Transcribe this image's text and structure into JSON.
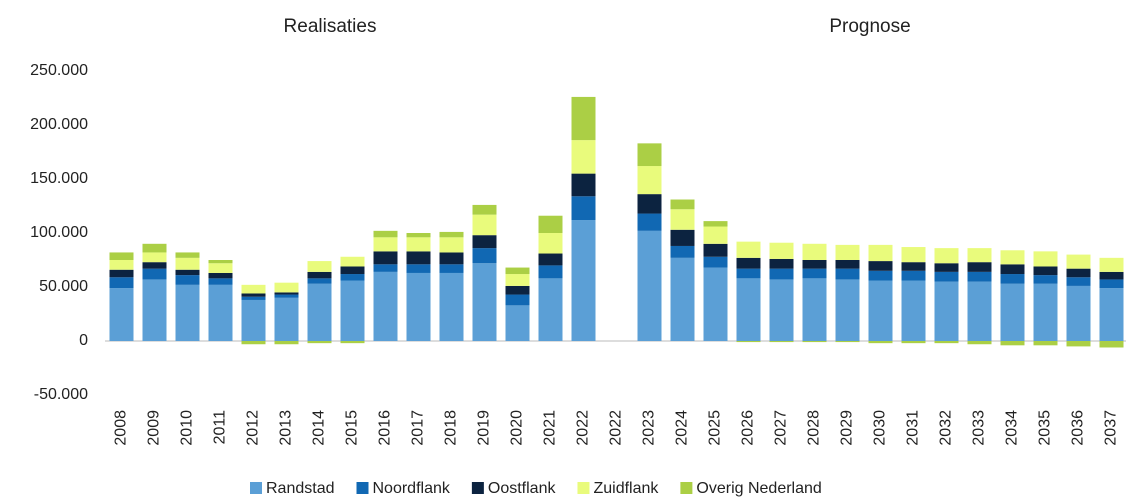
{
  "chart_data": {
    "type": "bar",
    "stacked": true,
    "annotations": [
      "Realisaties",
      "Prognose"
    ],
    "categories": [
      "2008",
      "2009",
      "2010",
      "2011",
      "2012",
      "2013",
      "2014",
      "2015",
      "2016",
      "2017",
      "2018",
      "2019",
      "2020",
      "2021",
      "2022",
      "2022",
      "2023",
      "2024",
      "2025",
      "2026",
      "2027",
      "2028",
      "2029",
      "2030",
      "2031",
      "2032",
      "2033",
      "2034",
      "2035",
      "2036",
      "2037"
    ],
    "series": [
      {
        "name": "Randstad",
        "color": "#5b9fd6",
        "values": [
          49000,
          57000,
          52000,
          52000,
          38000,
          40000,
          53000,
          56000,
          64000,
          63000,
          63000,
          72000,
          33000,
          58000,
          112000,
          null,
          102000,
          77000,
          68000,
          58000,
          57000,
          58000,
          57000,
          56000,
          56000,
          55000,
          55000,
          53000,
          53000,
          51000,
          49000
        ]
      },
      {
        "name": "Noordflank",
        "color": "#1168b3",
        "values": [
          10000,
          10000,
          9000,
          6000,
          3000,
          3000,
          5000,
          6000,
          7000,
          8000,
          8000,
          14000,
          10000,
          12000,
          22000,
          null,
          16000,
          11000,
          10000,
          9000,
          10000,
          9000,
          10000,
          9000,
          9000,
          9000,
          9000,
          9000,
          8000,
          8000,
          8000
        ]
      },
      {
        "name": "Oostflank",
        "color": "#0c2340",
        "values": [
          7000,
          6000,
          5000,
          5000,
          3000,
          2000,
          6000,
          7000,
          12000,
          12000,
          11000,
          12000,
          8000,
          11000,
          21000,
          null,
          18000,
          15000,
          12000,
          10000,
          9000,
          8000,
          8000,
          9000,
          8000,
          8000,
          9000,
          9000,
          8000,
          8000,
          7000
        ]
      },
      {
        "name": "Zuidflank",
        "color": "#e9fb7c",
        "values": [
          9000,
          9000,
          11000,
          9000,
          8000,
          9000,
          10000,
          9000,
          13000,
          13000,
          14000,
          19000,
          11000,
          19000,
          31000,
          null,
          26000,
          19000,
          16000,
          15000,
          15000,
          15000,
          14000,
          15000,
          14000,
          14000,
          13000,
          13000,
          14000,
          13000,
          13000
        ]
      },
      {
        "name": "Overig Nederland",
        "color": "#abcf45",
        "values": [
          7000,
          8000,
          5000,
          3000,
          -3000,
          -3000,
          -2000,
          -2000,
          6000,
          4000,
          5000,
          9000,
          6000,
          16000,
          40000,
          null,
          21000,
          9000,
          5000,
          -1000,
          -1000,
          -1000,
          -1000,
          -2000,
          -2000,
          -2000,
          -3000,
          -4000,
          -4000,
          -5000,
          -6000
        ]
      }
    ],
    "ylim": [
      -50000,
      250000
    ],
    "yticks": [
      {
        "value": -50000,
        "label": "-50.000"
      },
      0,
      {
        "value": 50000,
        "label": "50.000"
      },
      {
        "value": 100000,
        "label": "100.000"
      },
      {
        "value": 150000,
        "label": "150.000"
      },
      {
        "value": 200000,
        "label": "200.000"
      },
      {
        "value": 250000,
        "label": "250.000"
      }
    ],
    "grid": false,
    "legend": "bottom"
  }
}
